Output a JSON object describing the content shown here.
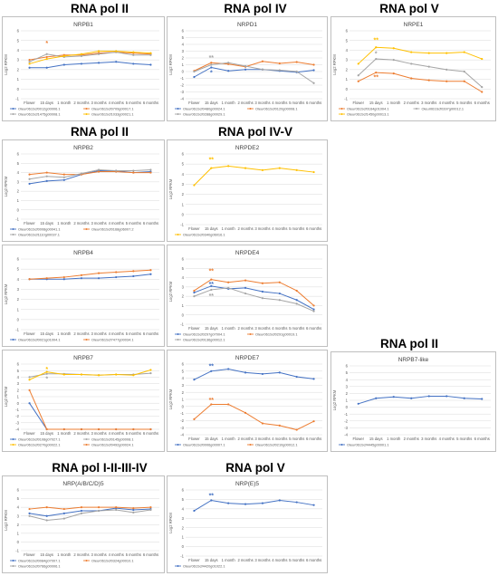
{
  "sections": [
    {
      "id": "s1",
      "label": "RNA pol II"
    },
    {
      "id": "s2",
      "label": "RNA pol IV"
    },
    {
      "id": "s3",
      "label": "RNA pol V"
    },
    {
      "id": "s4",
      "label": "RNA pol II"
    },
    {
      "id": "s5",
      "label": "RNA pol IV-V"
    },
    {
      "id": "s6",
      "label": "RNA pol II"
    },
    {
      "id": "s7",
      "label": "RNA pol I-II-III-IV"
    },
    {
      "id": "s8",
      "label": "RNA pol V"
    }
  ],
  "colors": {
    "blue": "#4472c4",
    "orange": "#ed7d31",
    "gray": "#a5a5a5",
    "yellow": "#ffc000"
  },
  "chart_data": [
    {
      "id": "nrpb1",
      "type": "line",
      "title": "NRPB1",
      "ylabel": "Log2 RPKM",
      "ylim": [
        -1,
        6
      ],
      "yticks": [
        -1,
        0,
        1,
        2,
        3,
        4,
        5,
        6
      ],
      "categories": [
        "Flower",
        "15 days",
        "1 month",
        "2 months",
        "3 months",
        "4 months",
        "5 months",
        "6 months"
      ],
      "series": [
        {
          "name": "Oleur061Scf0012g00006.1",
          "color": "blue",
          "values": [
            2.2,
            2.2,
            2.5,
            2.6,
            2.7,
            2.8,
            2.6,
            2.5
          ]
        },
        {
          "name": "Oleur061Scf0709g00017.1",
          "color": "orange",
          "values": [
            3.0,
            3.3,
            3.5,
            3.5,
            3.7,
            3.8,
            3.7,
            3.6
          ]
        },
        {
          "name": "Oleur061Scf1475g00008.1",
          "color": "gray",
          "values": [
            2.8,
            3.6,
            3.3,
            3.4,
            3.6,
            3.8,
            3.5,
            3.5
          ]
        },
        {
          "name": "Oleur061Scf1033g00021.1",
          "color": "yellow",
          "values": [
            2.6,
            3.1,
            3.4,
            3.6,
            3.9,
            3.9,
            3.8,
            3.7
          ]
        }
      ],
      "stars": [
        {
          "x": 1,
          "y": 4.7,
          "color": "orange",
          "text": "*"
        }
      ]
    },
    {
      "id": "nrpd1",
      "type": "line",
      "title": "NRPD1",
      "ylabel": "Log2 RPKM",
      "ylim": [
        -4,
        6
      ],
      "yticks": [
        -4,
        -3,
        -2,
        -1,
        0,
        1,
        2,
        3,
        4,
        5,
        6
      ],
      "categories": [
        "Flower",
        "15 days",
        "1 month",
        "2 months",
        "3 months",
        "4 months",
        "5 months",
        "6 months"
      ],
      "series": [
        {
          "name": "Oleur061Scf0480g00024.1",
          "color": "blue",
          "values": [
            -0.8,
            0.6,
            0.1,
            0.3,
            0.3,
            0.1,
            -0.1,
            0.2
          ]
        },
        {
          "name": "Oleur061Scf0120g00008.1",
          "color": "orange",
          "values": [
            0.1,
            1.3,
            1.1,
            0.7,
            1.5,
            1.2,
            1.4,
            1.0
          ]
        },
        {
          "name": "Oleur061Scf0288g00029.1",
          "color": "gray",
          "values": [
            0.0,
            1.0,
            1.3,
            0.8,
            0.3,
            0.2,
            0.0,
            -1.7
          ]
        }
      ],
      "stars": [
        {
          "x": 1,
          "y": 2.0,
          "color": "gray",
          "text": "**"
        },
        {
          "x": 1,
          "y": -0.2,
          "color": "blue",
          "text": "*"
        }
      ]
    },
    {
      "id": "nrpe1",
      "type": "line",
      "title": "NRPE1",
      "ylabel": "Log2 RPKM",
      "ylim": [
        -1,
        6
      ],
      "yticks": [
        -1,
        0,
        1,
        2,
        3,
        4,
        5,
        6
      ],
      "categories": [
        "Flower",
        "15 days",
        "1 month",
        "2 months",
        "3 months",
        "4 months",
        "5 months",
        "6 months"
      ],
      "series": [
        {
          "name": "Oleur061Scf0164g01004.1",
          "color": "orange",
          "values": [
            0.8,
            1.7,
            1.6,
            1.1,
            0.9,
            0.8,
            0.8,
            -0.3
          ]
        },
        {
          "name": "Oleur061Scf0397g00012.1",
          "color": "gray",
          "values": [
            1.4,
            3.1,
            3.0,
            2.6,
            2.3,
            2.0,
            1.8,
            0.2
          ]
        },
        {
          "name": "Oleur061Scf1450g00013.1",
          "color": "yellow",
          "values": [
            2.6,
            4.3,
            4.2,
            3.8,
            3.7,
            3.7,
            3.8,
            3.1
          ]
        }
      ],
      "stars": [
        {
          "x": 1,
          "y": 5.0,
          "color": "yellow",
          "text": "**"
        },
        {
          "x": 1,
          "y": 3.6,
          "color": "gray",
          "text": "*"
        },
        {
          "x": 1,
          "y": 1.2,
          "color": "orange",
          "text": "**"
        }
      ]
    },
    {
      "id": "nrpb2",
      "type": "line",
      "title": "NRPB2",
      "ylabel": "Log2 RPKM",
      "ylim": [
        -1,
        6
      ],
      "yticks": [
        -1,
        0,
        1,
        2,
        3,
        4,
        5,
        6
      ],
      "categories": [
        "Flower",
        "15 days",
        "1 month",
        "2 months",
        "3 months",
        "4 months",
        "5 months",
        "6 months"
      ],
      "series": [
        {
          "name": "Oleur061Scf0008g00041.1",
          "color": "blue",
          "values": [
            2.8,
            3.1,
            3.2,
            3.8,
            4.2,
            4.2,
            4.0,
            4.1
          ]
        },
        {
          "name": "Oleur061Scf0168g06007.2",
          "color": "orange",
          "values": [
            3.8,
            4.0,
            3.8,
            3.8,
            4.1,
            4.1,
            4.0,
            4.0
          ]
        },
        {
          "name": "Oleur061Scf1110g00037.1",
          "color": "gray",
          "values": [
            3.3,
            3.6,
            3.5,
            3.9,
            4.3,
            4.2,
            4.2,
            4.3
          ]
        }
      ],
      "stars": []
    },
    {
      "id": "nrpde2",
      "type": "line",
      "title": "NRPDE2",
      "ylabel": "Log2 RPKM",
      "ylim": [
        -1,
        6
      ],
      "yticks": [
        -1,
        0,
        1,
        2,
        3,
        4,
        5,
        6
      ],
      "categories": [
        "Flower",
        "15 days",
        "1 month",
        "2 months",
        "3 months",
        "4 months",
        "5 months",
        "6 months"
      ],
      "series": [
        {
          "name": "Oleur061Scf0340g06016.1",
          "color": "yellow",
          "values": [
            2.9,
            4.6,
            4.8,
            4.6,
            4.4,
            4.6,
            4.4,
            4.2
          ]
        }
      ],
      "stars": [
        {
          "x": 1,
          "y": 5.4,
          "color": "yellow",
          "text": "**"
        }
      ]
    },
    {
      "id": "nrpb4",
      "type": "line",
      "title": "NRPB4",
      "ylabel": "Log2 RPKM",
      "ylim": [
        -1,
        6
      ],
      "yticks": [
        -1,
        0,
        1,
        2,
        3,
        4,
        5,
        6
      ],
      "categories": [
        "Flower",
        "15 days",
        "1 month",
        "2 months",
        "3 months",
        "4 months",
        "5 months",
        "6 months"
      ],
      "series": [
        {
          "name": "Oleur061Scf0021g01004.1",
          "color": "blue",
          "values": [
            4.0,
            4.0,
            4.0,
            4.1,
            4.1,
            4.2,
            4.3,
            4.5
          ]
        },
        {
          "name": "Oleur061Scf7477g00034.1",
          "color": "orange",
          "values": [
            4.0,
            4.1,
            4.2,
            4.4,
            4.6,
            4.7,
            4.8,
            4.9
          ]
        }
      ],
      "stars": []
    },
    {
      "id": "nrpde4",
      "type": "line",
      "title": "NRPDE4",
      "ylabel": "Log2 RPKM",
      "ylim": [
        -1,
        6
      ],
      "yticks": [
        -1,
        0,
        1,
        2,
        3,
        4,
        5,
        6
      ],
      "categories": [
        "Flower",
        "15 days",
        "1 month",
        "2 months",
        "3 months",
        "4 months",
        "5 months",
        "6 months"
      ],
      "series": [
        {
          "name": "Oleur061Scf0297g07004.1",
          "color": "blue",
          "values": [
            2.4,
            3.1,
            2.8,
            2.9,
            2.5,
            2.3,
            1.6,
            0.6
          ]
        },
        {
          "name": "Oleur061Scf0291g00019.1",
          "color": "orange",
          "values": [
            2.6,
            3.8,
            3.5,
            3.7,
            3.4,
            3.5,
            2.6,
            1.0
          ]
        },
        {
          "name": "Oleur061Scf0136g00012.1",
          "color": "gray",
          "values": [
            2.0,
            2.7,
            2.9,
            2.3,
            1.8,
            1.6,
            1.2,
            0.4
          ]
        }
      ],
      "stars": [
        {
          "x": 1,
          "y": 4.7,
          "color": "orange",
          "text": "**"
        },
        {
          "x": 1,
          "y": 3.3,
          "color": "blue",
          "text": "**"
        },
        {
          "x": 1,
          "y": 2.0,
          "color": "gray",
          "text": "**"
        }
      ]
    },
    {
      "id": "nrpb7",
      "type": "line",
      "title": "NRPB7",
      "ylabel": "Log2 RPKM",
      "ylim": [
        -4,
        6
      ],
      "yticks": [
        -4,
        -3,
        -2,
        -1,
        0,
        1,
        2,
        3,
        4,
        5,
        6
      ],
      "categories": [
        "Flower",
        "15 days",
        "1 month",
        "2 months",
        "3 months",
        "4 months",
        "5 months",
        "6 months"
      ],
      "series": [
        {
          "name": "Oleur061Scf0108g07027.1",
          "color": "blue",
          "values": [
            0.0,
            -4.0,
            -4.0,
            -4.0,
            -4.0,
            -4.0,
            -4.0,
            -4.0
          ]
        },
        {
          "name": "Oleur061Scf0145g00008.1",
          "color": "gray",
          "values": [
            4.0,
            4.5,
            4.5,
            4.4,
            4.3,
            4.4,
            4.4,
            4.6
          ]
        },
        {
          "name": "Oleur061Scf0270g00022.1",
          "color": "yellow",
          "values": [
            3.6,
            4.8,
            4.4,
            4.4,
            4.3,
            4.4,
            4.3,
            5.1
          ]
        },
        {
          "name": "Oleur061Scf0492g00024.1",
          "color": "orange",
          "values": [
            2.0,
            -4.0,
            -4.0,
            -4.0,
            -4.0,
            -4.0,
            -4.0,
            -4.0
          ]
        }
      ],
      "stars": [
        {
          "x": 1,
          "y": 5.2,
          "color": "yellow",
          "text": "*"
        },
        {
          "x": 1,
          "y": 3.7,
          "color": "gray",
          "text": "*"
        }
      ]
    },
    {
      "id": "nrpde7",
      "type": "line",
      "title": "NRPDE7",
      "ylabel": "Log2 RPKM",
      "ylim": [
        -4,
        6
      ],
      "yticks": [
        -4,
        -3,
        -2,
        -1,
        0,
        1,
        2,
        3,
        4,
        5,
        6
      ],
      "categories": [
        "Flower",
        "15 days",
        "1 month",
        "2 months",
        "3 months",
        "4 months",
        "5 months",
        "6 months"
      ],
      "series": [
        {
          "name": "Oleur061Scf0006g00007.1",
          "color": "blue",
          "values": [
            3.8,
            5.0,
            5.3,
            4.8,
            4.6,
            4.8,
            4.2,
            3.9
          ]
        },
        {
          "name": "Oleur061Scf0210g00012.1",
          "color": "orange",
          "values": [
            -1.8,
            0.3,
            0.3,
            -0.9,
            -2.4,
            -2.7,
            -3.3,
            -2.1
          ]
        }
      ],
      "stars": [
        {
          "x": 1,
          "y": 5.7,
          "color": "blue",
          "text": "**"
        },
        {
          "x": 1,
          "y": 0.9,
          "color": "orange",
          "text": "**"
        }
      ]
    },
    {
      "id": "nrpb7like",
      "type": "line",
      "title": "NRPB7-like",
      "ylabel": "Log2 RPKM",
      "ylim": [
        -4,
        6
      ],
      "yticks": [
        -4,
        -3,
        -2,
        -1,
        0,
        1,
        2,
        3,
        4,
        5,
        6
      ],
      "categories": [
        "Flower",
        "15 days",
        "1 month",
        "2 months",
        "3 months",
        "4 months",
        "5 months",
        "6 months"
      ],
      "series": [
        {
          "name": "Oleur061Scf4445g00001.1",
          "color": "blue",
          "values": [
            0.5,
            1.3,
            1.5,
            1.3,
            1.6,
            1.6,
            1.3,
            1.2
          ]
        }
      ],
      "stars": []
    },
    {
      "id": "nrpabcd5",
      "type": "line",
      "title": "NRP(A/B/C/D)5",
      "ylabel": "Log2 RPKM",
      "ylim": [
        -1,
        6
      ],
      "yticks": [
        -1,
        0,
        1,
        2,
        3,
        4,
        5,
        6
      ],
      "categories": [
        "Flower",
        "15 days",
        "1 month",
        "2 months",
        "3 months",
        "4 months",
        "5 months",
        "6 months"
      ],
      "series": [
        {
          "name": "Oleur061Scf0084g07007.1",
          "color": "blue",
          "values": [
            3.3,
            3.0,
            3.3,
            3.6,
            3.6,
            3.9,
            3.7,
            3.8
          ]
        },
        {
          "name": "Oleur061Scf0324g00010.1",
          "color": "orange",
          "values": [
            3.8,
            4.0,
            3.8,
            4.0,
            4.0,
            4.0,
            3.9,
            4.0
          ]
        },
        {
          "name": "Oleur061Scf0766g00006.1",
          "color": "gray",
          "values": [
            3.0,
            2.5,
            2.7,
            3.3,
            3.6,
            3.7,
            3.4,
            3.7
          ]
        }
      ],
      "stars": []
    },
    {
      "id": "nrpe5",
      "type": "line",
      "title": "NRP(E)5",
      "ylabel": "Log2 RPKM",
      "ylim": [
        -1,
        6
      ],
      "yticks": [
        -1,
        0,
        1,
        2,
        3,
        4,
        5,
        6
      ],
      "categories": [
        "Flower",
        "15 days",
        "1 month",
        "2 months",
        "3 months",
        "4 months",
        "5 months",
        "6 months"
      ],
      "series": [
        {
          "name": "Oleur061Scf4420g01022.1",
          "color": "blue",
          "values": [
            3.8,
            4.9,
            4.6,
            4.5,
            4.6,
            4.9,
            4.7,
            4.4
          ]
        }
      ],
      "stars": [
        {
          "x": 1,
          "y": 5.4,
          "color": "blue",
          "text": "**"
        }
      ]
    }
  ]
}
